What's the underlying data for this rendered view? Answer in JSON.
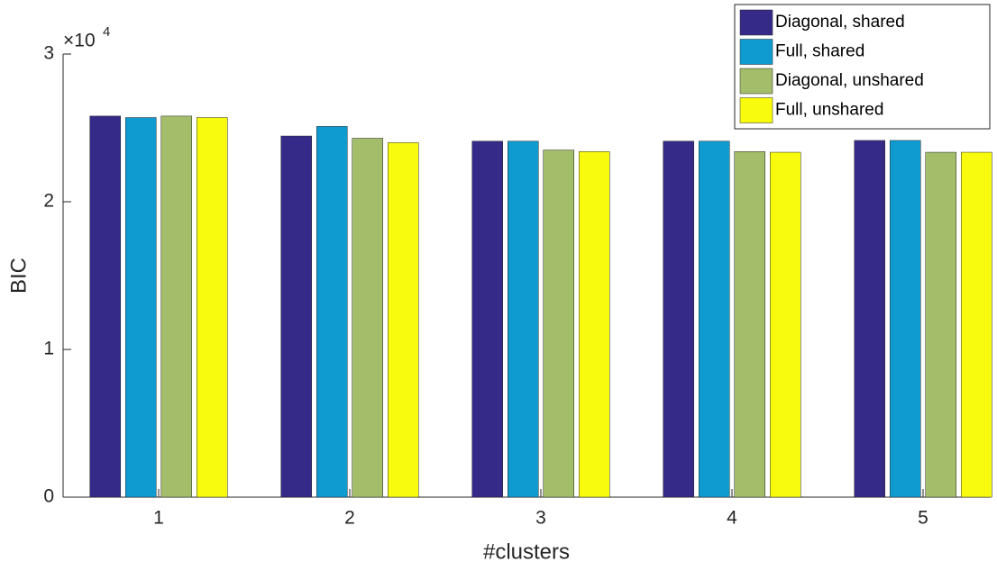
{
  "chart_data": {
    "type": "bar",
    "categories": [
      "1",
      "2",
      "3",
      "4",
      "5"
    ],
    "series": [
      {
        "name": "Diagonal, shared",
        "color": "#352a87",
        "values": [
          2.58,
          2.445,
          2.41,
          2.41,
          2.415
        ]
      },
      {
        "name": "Full, shared",
        "color": "#0f9bd0",
        "values": [
          2.57,
          2.51,
          2.41,
          2.41,
          2.415
        ]
      },
      {
        "name": "Diagonal, unshared",
        "color": "#a3bd6a",
        "values": [
          2.58,
          2.43,
          2.35,
          2.34,
          2.335
        ]
      },
      {
        "name": "Full, unshared",
        "color": "#f9fb0e",
        "values": [
          2.57,
          2.4,
          2.34,
          2.335,
          2.335
        ]
      }
    ],
    "x_label": "#clusters",
    "y_label": "BIC",
    "y_scale": {
      "base": "×10",
      "exponent": "4"
    },
    "ylim": [
      0,
      3
    ],
    "yticks": [
      0,
      1,
      2,
      3
    ],
    "legend": "top-right",
    "grid": false
  }
}
